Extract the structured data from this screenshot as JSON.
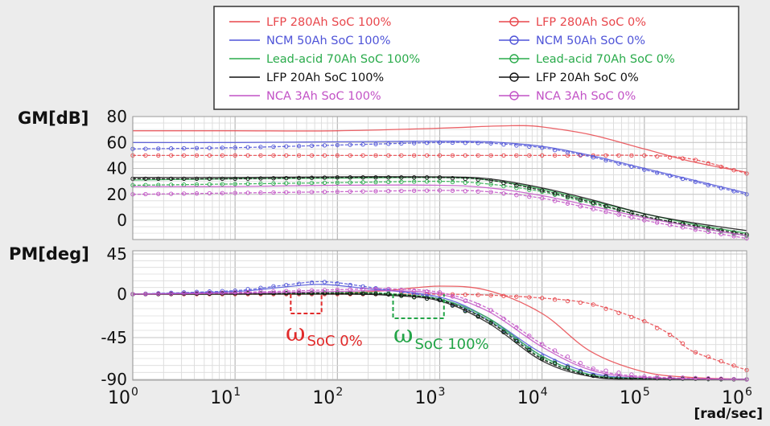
{
  "chart_data": {
    "type": "line",
    "x_scale": "log",
    "x_range": [
      1,
      1000000
    ],
    "x_tick_labels": [
      {
        "base": "10",
        "exp": "0"
      },
      {
        "base": "10",
        "exp": "1"
      },
      {
        "base": "10",
        "exp": "2"
      },
      {
        "base": "10",
        "exp": "3"
      },
      {
        "base": "10",
        "exp": "4"
      },
      {
        "base": "10",
        "exp": "5"
      },
      {
        "base": "10",
        "exp": "6"
      }
    ],
    "xlabel": "[rad/sec]",
    "grid": true,
    "legend_placement": "top",
    "legend": [
      {
        "label": "LFP 280Ah SoC 100%",
        "color": "#e8474c",
        "marker": "none"
      },
      {
        "label": "LFP 280Ah SoC 0%",
        "color": "#e8474c",
        "marker": "circle"
      },
      {
        "label": "NCM 50Ah SoC 100%",
        "color": "#4f54d8",
        "marker": "none"
      },
      {
        "label": "NCM 50Ah SoC 0%",
        "color": "#4f54d8",
        "marker": "circle"
      },
      {
        "label": "Lead-acid 70Ah SoC 100%",
        "color": "#2aab4b",
        "marker": "none"
      },
      {
        "label": "Lead-acid 70Ah SoC 0%",
        "color": "#2aab4b",
        "marker": "circle"
      },
      {
        "label": "LFP 20Ah SoC 100%",
        "color": "#111111",
        "marker": "none"
      },
      {
        "label": "LFP 20Ah SoC 0%",
        "color": "#111111",
        "marker": "circle"
      },
      {
        "label": "NCA 3Ah SoC 100%",
        "color": "#c252c6",
        "marker": "none"
      },
      {
        "label": "NCA 3Ah SoC 0%",
        "color": "#c252c6",
        "marker": "circle"
      }
    ],
    "panels": [
      {
        "name": "gain",
        "ylabel": "GM[dB]",
        "ylim": [
          -15,
          80
        ],
        "yticks": [
          "80",
          "60",
          "40",
          "20",
          "0"
        ],
        "ytick_values": [
          80,
          60,
          40,
          20,
          0
        ],
        "series": [
          {
            "name": "LFP 280Ah SoC 100%",
            "color": "#e8474c",
            "marker": "none",
            "x": [
              1,
              10,
              100,
              1000,
              3000,
              6000,
              10000,
              30000,
              100000,
              300000,
              1000000
            ],
            "y": [
              69,
              69,
              69,
              71,
              72.5,
              73,
              72,
              66,
              55,
              45,
              37
            ]
          },
          {
            "name": "LFP 280Ah SoC 0%",
            "color": "#e8474c",
            "marker": "circle",
            "x": [
              1,
              10,
              100,
              1000,
              10000,
              100000,
              300000,
              1000000
            ],
            "y": [
              50,
              50,
              50,
              50,
              50,
              50,
              47,
              36
            ]
          },
          {
            "name": "NCM 50Ah SoC 100%",
            "color": "#4f54d8",
            "marker": "none",
            "x": [
              1,
              10,
              100,
              1000,
              3000,
              10000,
              30000,
              100000,
              300000,
              1000000
            ],
            "y": [
              60,
              60,
              60.5,
              61,
              60.5,
              57,
              50,
              40,
              31,
              21
            ]
          },
          {
            "name": "NCM 50Ah SoC 0%",
            "color": "#4f54d8",
            "marker": "circle",
            "x": [
              1,
              10,
              100,
              1000,
              3000,
              10000,
              30000,
              100000,
              300000,
              1000000
            ],
            "y": [
              55,
              56,
              58,
              60,
              59.5,
              56,
              49,
              39,
              30,
              20
            ]
          },
          {
            "name": "Lead-acid 70Ah SoC 100%",
            "color": "#2aab4b",
            "marker": "none",
            "x": [
              1,
              10,
              100,
              1000,
              3000,
              10000,
              30000,
              100000,
              300000,
              1000000
            ],
            "y": [
              31,
              32,
              32.5,
              33,
              31,
              24,
              15,
              5,
              -3,
              -10
            ]
          },
          {
            "name": "Lead-acid 70Ah SoC 0%",
            "color": "#2aab4b",
            "marker": "circle",
            "x": [
              1,
              10,
              100,
              1000,
              3000,
              10000,
              30000,
              100000,
              300000,
              1000000
            ],
            "y": [
              27,
              28,
              29,
              30,
              28,
              22,
              13,
              3,
              -5,
              -12
            ]
          },
          {
            "name": "LFP 20Ah SoC 100%",
            "color": "#111111",
            "marker": "none",
            "x": [
              1,
              10,
              100,
              1000,
              3000,
              10000,
              30000,
              100000,
              300000,
              1000000
            ],
            "y": [
              33,
              33,
              33.5,
              33.5,
              32,
              25,
              16,
              5,
              -2,
              -8
            ]
          },
          {
            "name": "LFP 20Ah SoC 0%",
            "color": "#111111",
            "marker": "circle",
            "x": [
              1,
              10,
              100,
              1000,
              3000,
              10000,
              30000,
              100000,
              300000,
              1000000
            ],
            "y": [
              32,
              32,
              33,
              33,
              31,
              23,
              14,
              3,
              -4,
              -11
            ]
          },
          {
            "name": "NCA 3Ah SoC 100%",
            "color": "#c252c6",
            "marker": "none",
            "x": [
              1,
              10,
              100,
              1000,
              3000,
              10000,
              30000,
              100000,
              300000,
              1000000
            ],
            "y": [
              26,
              26,
              27,
              27,
              25,
              19,
              11,
              2,
              -5,
              -12
            ]
          },
          {
            "name": "NCA 3Ah SoC 0%",
            "color": "#c252c6",
            "marker": "circle",
            "x": [
              1,
              10,
              100,
              1000,
              3000,
              10000,
              30000,
              100000,
              300000,
              1000000
            ],
            "y": [
              20,
              21,
              22,
              23,
              22,
              17,
              9,
              0,
              -7,
              -14
            ]
          }
        ]
      },
      {
        "name": "phase",
        "ylabel": "PM[deg]",
        "ylim": [
          -90,
          45
        ],
        "yticks": [
          "45",
          "0",
          "-45",
          "-90"
        ],
        "ytick_values": [
          45,
          0,
          -45,
          -90
        ],
        "series": [
          {
            "name": "LFP 280Ah SoC 100%",
            "color": "#e8474c",
            "marker": "none",
            "x": [
              1,
              10,
              100,
              300,
              1000,
              3000,
              10000,
              30000,
              100000,
              300000,
              1000000
            ],
            "y": [
              0,
              0,
              1,
              4,
              9,
              4,
              -20,
              -60,
              -82,
              -88,
              -90
            ]
          },
          {
            "name": "LFP 280Ah SoC 0%",
            "color": "#e8474c",
            "marker": "circle",
            "x": [
              1,
              10,
              100,
              1000,
              3000,
              10000,
              30000,
              100000,
              200000,
              300000,
              1000000
            ],
            "y": [
              0,
              0,
              0,
              0,
              -1,
              -4,
              -10,
              -28,
              -45,
              -60,
              -80
            ]
          },
          {
            "name": "NCM 50Ah SoC 100%",
            "color": "#4f54d8",
            "marker": "none",
            "x": [
              1,
              10,
              30,
              70,
              200,
              1000,
              3000,
              10000,
              30000,
              100000,
              1000000
            ],
            "y": [
              0,
              3,
              8,
              11,
              6,
              -3,
              -25,
              -62,
              -83,
              -89,
              -90
            ]
          },
          {
            "name": "NCM 50Ah SoC 0%",
            "color": "#4f54d8",
            "marker": "circle",
            "x": [
              1,
              10,
              30,
              70,
              200,
              1000,
              3000,
              10000,
              30000,
              100000,
              1000000
            ],
            "y": [
              0,
              4,
              10,
              14,
              8,
              -5,
              -27,
              -65,
              -85,
              -89,
              -90
            ]
          },
          {
            "name": "Lead-acid 70Ah SoC 100%",
            "color": "#2aab4b",
            "marker": "none",
            "x": [
              1,
              10,
              100,
              300,
              1000,
              3000,
              10000,
              30000,
              100000,
              1000000
            ],
            "y": [
              0,
              0,
              1,
              0,
              -5,
              -25,
              -65,
              -85,
              -89,
              -90
            ]
          },
          {
            "name": "Lead-acid 70Ah SoC 0%",
            "color": "#2aab4b",
            "marker": "circle",
            "x": [
              1,
              10,
              100,
              300,
              1000,
              3000,
              10000,
              30000,
              100000,
              1000000
            ],
            "y": [
              0,
              1,
              2,
              1,
              -6,
              -27,
              -67,
              -86,
              -89,
              -90
            ]
          },
          {
            "name": "LFP 20Ah SoC 100%",
            "color": "#111111",
            "marker": "none",
            "x": [
              1,
              10,
              100,
              300,
              1000,
              3000,
              10000,
              30000,
              100000,
              1000000
            ],
            "y": [
              0,
              0,
              0,
              -1,
              -7,
              -30,
              -70,
              -87,
              -90,
              -90
            ]
          },
          {
            "name": "LFP 20Ah SoC 0%",
            "color": "#111111",
            "marker": "circle",
            "x": [
              1,
              10,
              100,
              300,
              1000,
              3000,
              10000,
              30000,
              100000,
              1000000
            ],
            "y": [
              0,
              1,
              1,
              0,
              -6,
              -28,
              -68,
              -86,
              -89,
              -90
            ]
          },
          {
            "name": "NCA 3Ah SoC 100%",
            "color": "#c252c6",
            "marker": "none",
            "x": [
              1,
              10,
              100,
              300,
              1000,
              3000,
              10000,
              30000,
              100000,
              1000000
            ],
            "y": [
              0,
              1,
              3,
              4,
              0,
              -18,
              -55,
              -80,
              -88,
              -90
            ]
          },
          {
            "name": "NCA 3Ah SoC 0%",
            "color": "#c252c6",
            "marker": "circle",
            "x": [
              1,
              10,
              100,
              300,
              1000,
              3000,
              10000,
              30000,
              100000,
              1000000
            ],
            "y": [
              0,
              2,
              5,
              6,
              2,
              -15,
              -52,
              -78,
              -87,
              -90
            ]
          }
        ]
      }
    ],
    "annotations": [
      {
        "symbol": "ω",
        "subscript": "SoC 0%",
        "color": "#e12a2a",
        "x_range": [
          35,
          70
        ],
        "y_range": [
          -20,
          0
        ]
      },
      {
        "symbol": "ω",
        "subscript": "SoC 100%",
        "color": "#22a447",
        "x_range": [
          350,
          1100
        ],
        "y_range": [
          -25,
          0
        ]
      }
    ]
  }
}
